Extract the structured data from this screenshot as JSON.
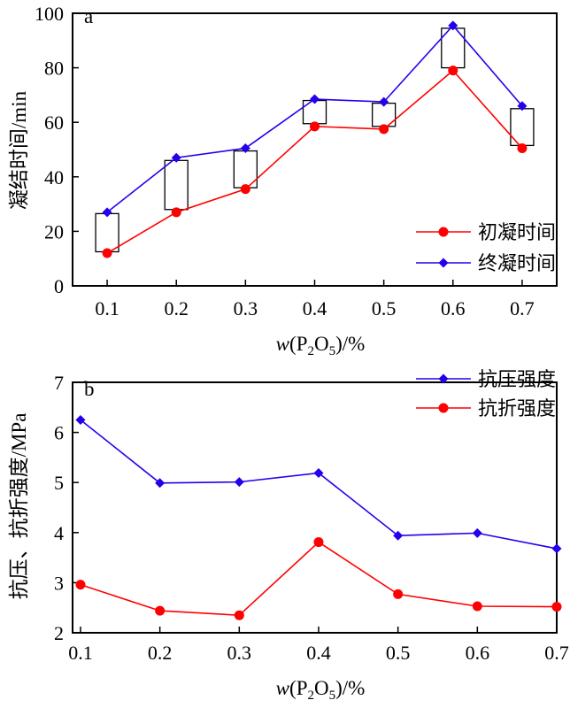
{
  "chart_data": [
    {
      "type": "line",
      "panel_label": "a",
      "ylabel": "凝结时间/min",
      "xlabel": {
        "var": "w",
        "paren_open": "(",
        "p": "P",
        "sub2": "2",
        "o": "O",
        "sub5": "5",
        "tail": ")/%"
      },
      "x": [
        0.1,
        0.2,
        0.3,
        0.4,
        0.5,
        0.6,
        0.7
      ],
      "x_tick_labels": [
        "0.1",
        "0.2",
        "0.3",
        "0.4",
        "0.5",
        "0.6",
        "0.7"
      ],
      "xlim": [
        0.05,
        0.75
      ],
      "ylim": [
        0,
        100
      ],
      "y_ticks": [
        0,
        20,
        40,
        60,
        80,
        100
      ],
      "y_tick_labels": [
        "0",
        "20",
        "40",
        "60",
        "80",
        "100"
      ],
      "legend_position": "bottom-right",
      "series": [
        {
          "name": "初凝时间",
          "color": "#ff0000",
          "marker": "circle",
          "values": [
            12,
            27,
            35.5,
            58.5,
            57.5,
            79,
            50.5
          ]
        },
        {
          "name": "终凝时间",
          "color": "#2200ee",
          "marker": "diamond",
          "values": [
            27,
            47,
            50.5,
            68.5,
            67.5,
            95.5,
            66
          ]
        }
      ],
      "range_boxes": [
        {
          "x": 0.1,
          "low": 12.5,
          "high": 26.5
        },
        {
          "x": 0.2,
          "low": 28,
          "high": 46
        },
        {
          "x": 0.3,
          "low": 36,
          "high": 49.5
        },
        {
          "x": 0.4,
          "low": 59.5,
          "high": 68
        },
        {
          "x": 0.5,
          "low": 58.5,
          "high": 67
        },
        {
          "x": 0.6,
          "low": 80,
          "high": 94.5
        },
        {
          "x": 0.7,
          "low": 51.5,
          "high": 65
        }
      ]
    },
    {
      "type": "line",
      "panel_label": "b",
      "ylabel": "抗压、抗折强度/MPa",
      "xlabel": {
        "var": "w",
        "paren_open": "(",
        "p": "P",
        "sub2": "2",
        "o": "O",
        "sub5": "5",
        "tail": ")/%"
      },
      "x": [
        0.1,
        0.2,
        0.3,
        0.4,
        0.5,
        0.6,
        0.7
      ],
      "x_tick_labels": [
        "0.1",
        "0.2",
        "0.3",
        "0.4",
        "0.5",
        "0.6",
        "0.7"
      ],
      "xlim": [
        0.09,
        0.7
      ],
      "ylim": [
        2,
        7
      ],
      "y_ticks": [
        2,
        3,
        4,
        5,
        6,
        7
      ],
      "y_tick_labels": [
        "2",
        "3",
        "4",
        "5",
        "6",
        "7"
      ],
      "legend_position": "top-right",
      "series": [
        {
          "name": "抗压强度",
          "color": "#2200ee",
          "marker": "diamond",
          "values": [
            6.25,
            4.99,
            5.01,
            5.19,
            3.94,
            3.99,
            3.68
          ]
        },
        {
          "name": "抗折强度",
          "color": "#ff0000",
          "marker": "circle",
          "values": [
            2.96,
            2.44,
            2.35,
            3.81,
            2.77,
            2.53,
            2.52
          ]
        }
      ]
    }
  ]
}
